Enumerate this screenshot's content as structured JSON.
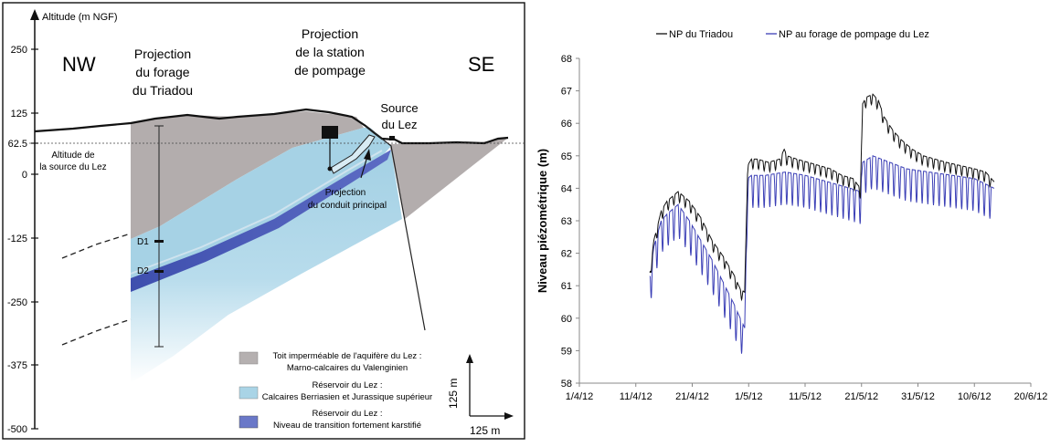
{
  "section": {
    "axis_title": "Altitude (m NGF)",
    "nw": "NW",
    "se": "SE",
    "label_triadou": [
      "Projection",
      "du forage",
      "du Triadou"
    ],
    "label_station": [
      "Projection",
      "de la station",
      "de pompage"
    ],
    "label_source": [
      "Source",
      "du Lez"
    ],
    "label_alt_source": [
      "Altitude de",
      "la source du Lez"
    ],
    "label_conduit": [
      "Projection",
      "du conduit principal"
    ],
    "d1": "D1",
    "d2": "D2",
    "scale_v": "125 m",
    "scale_h": "125 m",
    "ticks": [
      "250",
      "125",
      "62.5",
      "0",
      "-125",
      "-250",
      "-375",
      "-500"
    ],
    "legend": [
      {
        "line1": "Toit imperméable de l'aquifère du Lez :",
        "line2": "Marno-calcaires du Valenginien",
        "color": "#b5b0b0"
      },
      {
        "line1": "Réservoir du Lez :",
        "line2": "Calcaires Berriasien et Jurassique supérieur",
        "color": "#a9d4e6"
      },
      {
        "line1": "Réservoir du Lez :",
        "line2": "Niveau de transition fortement karstifié",
        "color": "#6a78c8"
      }
    ],
    "colors": {
      "roof": "#b3adad",
      "reservoir": "#a9d4e6",
      "karst": "#4f5fb8"
    }
  },
  "chart_data": {
    "type": "line",
    "title": "",
    "xlabel": "",
    "ylabel": "Niveau piézométrique (m)",
    "ylim": [
      58,
      68
    ],
    "yticks": [
      "58",
      "59",
      "60",
      "61",
      "62",
      "63",
      "64",
      "65",
      "66",
      "67",
      "68"
    ],
    "xticks": [
      "1/4/12",
      "11/4/12",
      "21/4/12",
      "1/5/12",
      "11/5/12",
      "21/5/12",
      "31/5/12",
      "10/6/12",
      "20/6/12"
    ],
    "x_domain_days": [
      0,
      80
    ],
    "series": [
      {
        "name": "NP du Triadou",
        "color": "#111111",
        "x": [
          12.5,
          13.2,
          14.5,
          15.5,
          17.5,
          19.5,
          21.5,
          23.5,
          25.5,
          27.5,
          28.5,
          29.3,
          29.8,
          30.5,
          31.5,
          33.5,
          35.5,
          36.3,
          36.8,
          38.5,
          40.5,
          42.5,
          44.5,
          46.5,
          48.5,
          49.8,
          50.2,
          50.8,
          52.0,
          53.0,
          54.0,
          55.5,
          57.0,
          59.0,
          61.0,
          63.0,
          65.0,
          67.5,
          70.0,
          72.0,
          73.5
        ],
        "y": [
          61.4,
          62.4,
          63.3,
          63.6,
          63.9,
          63.6,
          63.1,
          62.4,
          61.9,
          61.3,
          60.9,
          60.8,
          64.7,
          64.9,
          64.9,
          64.8,
          64.9,
          65.2,
          65.0,
          64.9,
          64.8,
          64.7,
          64.6,
          64.4,
          64.3,
          64.0,
          66.6,
          66.8,
          66.9,
          66.7,
          66.2,
          65.8,
          65.5,
          65.2,
          65.0,
          64.9,
          64.8,
          64.7,
          64.6,
          64.5,
          64.2
        ]
      },
      {
        "name": "NP au forage de pompage du Lez",
        "color": "#3b3fb6",
        "x": [
          12.5,
          13.2,
          14.5,
          15.5,
          17.5,
          19.5,
          21.5,
          23.5,
          25.5,
          27.5,
          28.5,
          29.3,
          29.8,
          30.5,
          33.0,
          36.5,
          40.0,
          44.0,
          48.0,
          49.8,
          50.2,
          52.0,
          55.0,
          58.0,
          62.0,
          66.0,
          70.0,
          73.5
        ],
        "y": [
          61.3,
          62.2,
          63.0,
          63.2,
          63.5,
          63.0,
          62.4,
          61.8,
          61.1,
          60.4,
          60.0,
          59.7,
          64.3,
          64.4,
          64.4,
          64.5,
          64.4,
          64.2,
          64.0,
          63.9,
          64.8,
          65.0,
          64.8,
          64.6,
          64.5,
          64.4,
          64.3,
          64.0
        ]
      }
    ],
    "oscillation_amplitude_m": {
      "NP du Triadou": 0.3,
      "NP au forage de pompage du Lez": 1.0
    }
  }
}
